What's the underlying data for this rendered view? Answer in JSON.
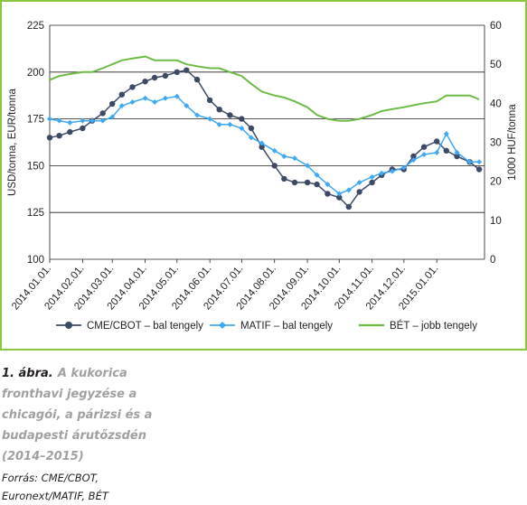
{
  "chart_data": {
    "type": "line",
    "x_tick_labels": [
      "2014.01.01.",
      "2014.02.01.",
      "2014.03.01.",
      "2014.04.01.",
      "2014.05.01.",
      "2014.06.01.",
      "2014.07.01.",
      "2014.08.01.",
      "2014.09.01.",
      "2014.10.01.",
      "2014.11.01.",
      "2014.12.01.",
      "2015.01.01."
    ],
    "ylabel_left": "USD/tonna, EUR/tonna",
    "ylabel_right": "1000 HUF/tonna",
    "ylim_left": [
      100,
      225
    ],
    "yticks_left": [
      100,
      125,
      150,
      175,
      200,
      225
    ],
    "ylim_right": [
      0,
      60
    ],
    "yticks_right": [
      0,
      10,
      20,
      30,
      40,
      50,
      60
    ],
    "xlim": [
      "2014.01.01.",
      "2015.02.15."
    ],
    "grid": "horizontal",
    "legend_position": "bottom",
    "series": [
      {
        "name": "CME/CBOT – bal tengely",
        "axis": "left",
        "color": "#3d4a66",
        "marker": "circle",
        "x": [
          "2014.01.01.",
          "2014.01.10.",
          "2014.01.20.",
          "2014.02.01.",
          "2014.02.10.",
          "2014.02.20.",
          "2014.03.01.",
          "2014.03.10.",
          "2014.03.20.",
          "2014.04.01.",
          "2014.04.10.",
          "2014.04.20.",
          "2014.05.01.",
          "2014.05.10.",
          "2014.05.20.",
          "2014.06.01.",
          "2014.06.10.",
          "2014.06.20.",
          "2014.07.01.",
          "2014.07.10.",
          "2014.07.20.",
          "2014.08.01.",
          "2014.08.10.",
          "2014.08.20.",
          "2014.09.01.",
          "2014.09.10.",
          "2014.09.20.",
          "2014.10.01.",
          "2014.10.10.",
          "2014.10.20.",
          "2014.11.01.",
          "2014.11.10.",
          "2014.11.20.",
          "2014.12.01.",
          "2014.12.10.",
          "2014.12.20.",
          "2015.01.01.",
          "2015.01.10.",
          "2015.01.20.",
          "2015.02.01.",
          "2015.02.10."
        ],
        "values": [
          165,
          166,
          168,
          170,
          174,
          178,
          183,
          188,
          192,
          195,
          197,
          198,
          200,
          201,
          196,
          185,
          180,
          177,
          175,
          170,
          160,
          150,
          143,
          141,
          141,
          140,
          135,
          133,
          128,
          136,
          141,
          145,
          148,
          148,
          155,
          160,
          163,
          158,
          155,
          152,
          148
        ]
      },
      {
        "name": "MATIF – bal tengely",
        "axis": "left",
        "color": "#3fa9f5",
        "marker": "diamond",
        "x": [
          "2014.01.01.",
          "2014.01.10.",
          "2014.01.20.",
          "2014.02.01.",
          "2014.02.10.",
          "2014.02.20.",
          "2014.03.01.",
          "2014.03.10.",
          "2014.03.20.",
          "2014.04.01.",
          "2014.04.10.",
          "2014.04.20.",
          "2014.05.01.",
          "2014.05.10.",
          "2014.05.20.",
          "2014.06.01.",
          "2014.06.10.",
          "2014.06.20.",
          "2014.07.01.",
          "2014.07.10.",
          "2014.07.20.",
          "2014.08.01.",
          "2014.08.10.",
          "2014.08.20.",
          "2014.09.01.",
          "2014.09.10.",
          "2014.09.20.",
          "2014.10.01.",
          "2014.10.10.",
          "2014.10.20.",
          "2014.11.01.",
          "2014.11.10.",
          "2014.11.20.",
          "2014.12.01.",
          "2014.12.10.",
          "2014.12.20.",
          "2015.01.01.",
          "2015.01.10.",
          "2015.01.20.",
          "2015.02.01.",
          "2015.02.10."
        ],
        "values": [
          175,
          174,
          173,
          174,
          174,
          174,
          176,
          182,
          184,
          186,
          184,
          186,
          187,
          182,
          177,
          175,
          172,
          172,
          170,
          165,
          162,
          158,
          155,
          154,
          150,
          145,
          140,
          135,
          137,
          141,
          144,
          146,
          147,
          149,
          153,
          156,
          157,
          167,
          157,
          152,
          152
        ]
      },
      {
        "name": "BÉT – jobb tengely",
        "axis": "right",
        "color": "#6dbb45",
        "marker": "none",
        "x": [
          "2014.01.01.",
          "2014.01.10.",
          "2014.01.20.",
          "2014.02.01.",
          "2014.02.10.",
          "2014.02.20.",
          "2014.03.01.",
          "2014.03.10.",
          "2014.03.20.",
          "2014.04.01.",
          "2014.04.10.",
          "2014.04.20.",
          "2014.05.01.",
          "2014.05.10.",
          "2014.05.20.",
          "2014.06.01.",
          "2014.06.10.",
          "2014.06.20.",
          "2014.07.01.",
          "2014.07.10.",
          "2014.07.20.",
          "2014.08.01.",
          "2014.08.10.",
          "2014.08.20.",
          "2014.09.01.",
          "2014.09.10.",
          "2014.09.20.",
          "2014.10.01.",
          "2014.10.10.",
          "2014.10.20.",
          "2014.11.01.",
          "2014.11.10.",
          "2014.11.20.",
          "2014.12.01.",
          "2014.12.10.",
          "2014.12.20.",
          "2015.01.01.",
          "2015.01.10.",
          "2015.01.20.",
          "2015.02.01.",
          "2015.02.10."
        ],
        "values": [
          46,
          47,
          47.5,
          48,
          48,
          49,
          50,
          51,
          51.5,
          52,
          51,
          51,
          51,
          50,
          49.5,
          49,
          49,
          48,
          47,
          45,
          43,
          42,
          41.5,
          40.5,
          39,
          37,
          36,
          35.5,
          35.5,
          36,
          37,
          38,
          38.5,
          39,
          39.5,
          40,
          40.5,
          42,
          42,
          42,
          41
        ]
      }
    ]
  },
  "caption": {
    "label": "1. ábra.",
    "title": "A kukorica fronthavi jegyzése a chicagói, a párizsi és a budapesti árutőzsdén (2014–2015)",
    "source": "Forrás: CME/CBOT, Euronext/MATIF, BÉT"
  }
}
